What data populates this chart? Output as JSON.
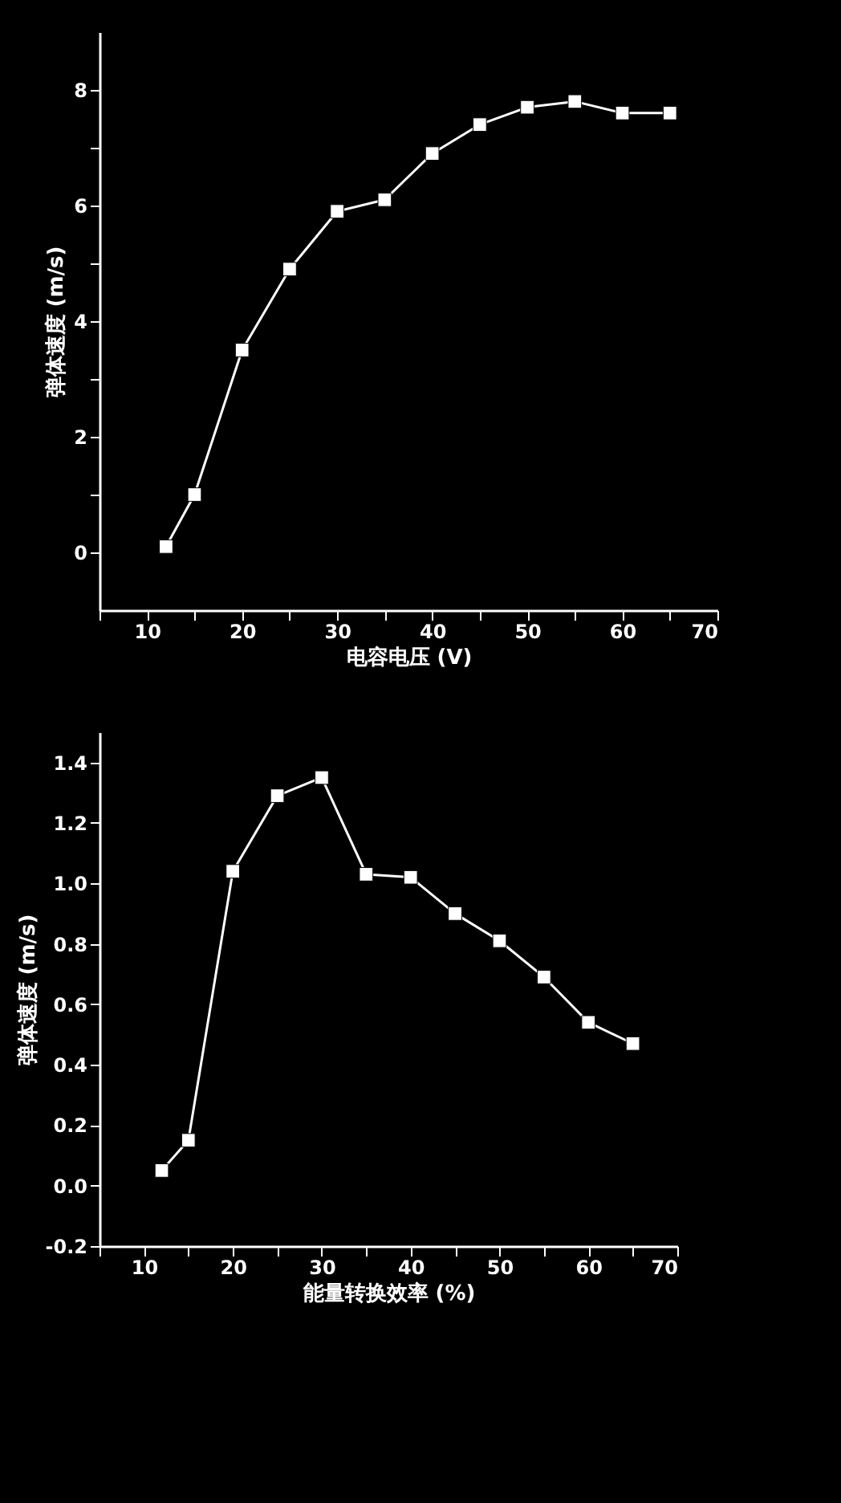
{
  "chart_data": [
    {
      "type": "line",
      "xlabel": "电容电压 (V)",
      "ylabel": "弹体速度 (m/s)",
      "x": [
        12,
        15,
        20,
        25,
        30,
        35,
        40,
        45,
        50,
        55,
        60,
        65
      ],
      "series": [
        {
          "color": "#ffffff",
          "values": [
            0.1,
            1.0,
            3.5,
            4.9,
            5.9,
            6.1,
            6.9,
            7.4,
            7.7,
            7.8,
            7.6,
            7.6
          ]
        }
      ],
      "xlim": [
        5,
        70
      ],
      "xticks": [
        {
          "value": 5,
          "label": null
        },
        10,
        {
          "value": 15,
          "label": null
        },
        20,
        {
          "value": 25,
          "label": null
        },
        30,
        {
          "value": 35,
          "label": null
        },
        40,
        {
          "value": 45,
          "label": null
        },
        50,
        {
          "value": 55,
          "label": null
        },
        60,
        {
          "value": 65,
          "label": null
        },
        70
      ],
      "ylim": [
        -1,
        9
      ],
      "yticks": [
        0,
        {
          "value": 1,
          "label": null
        },
        2,
        {
          "value": 3,
          "label": null
        },
        4,
        {
          "value": 5,
          "label": null
        },
        6,
        {
          "value": 7,
          "label": null
        },
        8
      ],
      "grid": false,
      "marker": "square",
      "line_style": "solid"
    },
    {
      "type": "line",
      "xlabel": "能量转换效率 (%)",
      "ylabel": "弹体速度 (m/s)",
      "x": [
        12,
        15,
        20,
        25,
        30,
        35,
        40,
        45,
        50,
        55,
        60,
        65
      ],
      "series": [
        {
          "color": "#ffffff",
          "values": [
            0.05,
            0.15,
            1.04,
            1.29,
            1.35,
            1.03,
            1.02,
            0.9,
            0.81,
            0.69,
            0.54,
            0.47
          ]
        }
      ],
      "xlim": [
        5,
        70
      ],
      "xticks": [
        {
          "value": 5,
          "label": null
        },
        10,
        {
          "value": 15,
          "label": null
        },
        20,
        {
          "value": 25,
          "label": null
        },
        30,
        {
          "value": 35,
          "label": null
        },
        40,
        {
          "value": 45,
          "label": null
        },
        50,
        {
          "value": 55,
          "label": null
        },
        60,
        {
          "value": 65,
          "label": null
        },
        70
      ],
      "ylim": [
        -0.2,
        1.5
      ],
      "yticks": [
        {
          "value": -0.2,
          "label": "-0.2"
        },
        {
          "value": 0,
          "label": "0.0"
        },
        0.2,
        0.4,
        0.6,
        0.8,
        {
          "value": 1,
          "label": "1.0"
        },
        1.2,
        1.4
      ],
      "grid": false,
      "marker": "square",
      "line_style": "solid"
    }
  ]
}
